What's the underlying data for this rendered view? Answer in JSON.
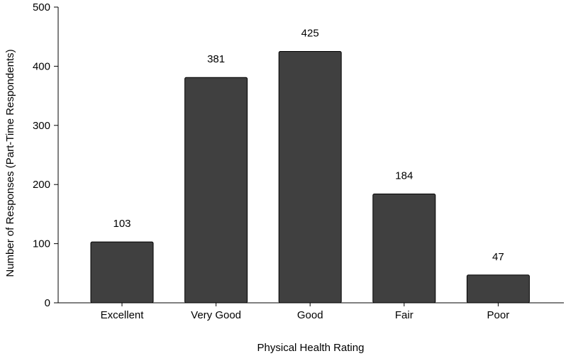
{
  "chart_data": {
    "type": "bar",
    "categories": [
      "Excellent",
      "Very Good",
      "Good",
      "Fair",
      "Poor"
    ],
    "values": [
      103,
      381,
      425,
      184,
      47
    ],
    "data_labels": [
      "103",
      "381",
      "425",
      "184",
      "47"
    ],
    "xlabel": "Physical Health Rating",
    "ylabel": "Number of Responses (Part-Time Respondents)",
    "ylim": [
      0,
      500
    ],
    "yticks": [
      0,
      100,
      200,
      300,
      400,
      500
    ],
    "ytick_labels": [
      "0",
      "100",
      "200",
      "300",
      "400",
      "500"
    ],
    "grid": false,
    "legend": "none",
    "bar_color": "#404040"
  }
}
